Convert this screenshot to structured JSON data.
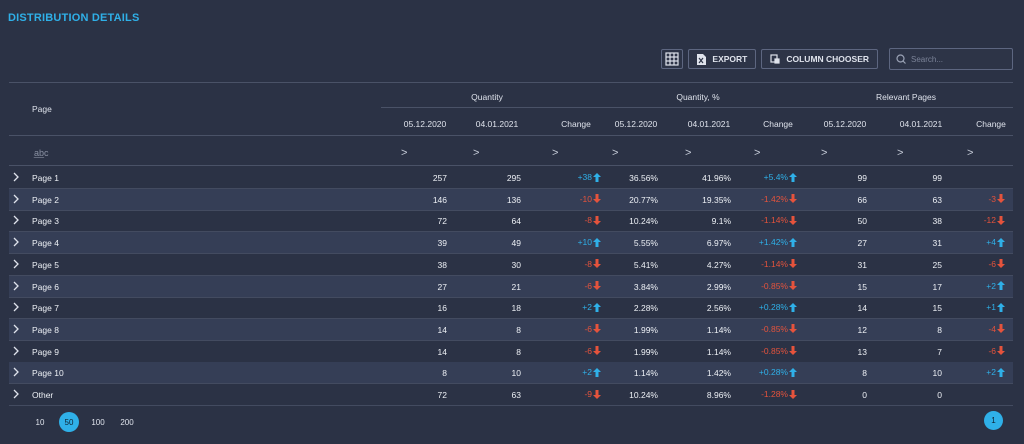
{
  "title": "DISTRIBUTION DETAILS",
  "toolbar": {
    "export_label": "EXPORT",
    "column_chooser_label": "COLUMN CHOOSER",
    "search_placeholder": "Search..."
  },
  "colors": {
    "accent": "#2fb0e8",
    "negative": "#e5533c",
    "background": "#2b3245",
    "row_alt": "#353e56"
  },
  "columns": {
    "page": "Page",
    "groups": [
      "Quantity",
      "Quantity, %",
      "Relevant Pages"
    ],
    "sub": [
      "05.12.2020",
      "04.01.2021",
      "Change",
      "05.12.2020",
      "04.01.2021",
      "Change",
      "05.12.2020",
      "04.01.2021",
      "Change"
    ],
    "filter_placeholder": "a̲b̲c"
  },
  "rows": [
    {
      "page": "Page 1",
      "q1": "257",
      "q2": "295",
      "qc": "+38",
      "qd": "up",
      "p1": "36.56%",
      "p2": "41.96%",
      "pc": "+5.4%",
      "pd": "up",
      "r1": "99",
      "r2": "99",
      "rc": "",
      "rd": ""
    },
    {
      "page": "Page 2",
      "q1": "146",
      "q2": "136",
      "qc": "-10",
      "qd": "down",
      "p1": "20.77%",
      "p2": "19.35%",
      "pc": "-1.42%",
      "pd": "down",
      "r1": "66",
      "r2": "63",
      "rc": "-3",
      "rd": "down"
    },
    {
      "page": "Page 3",
      "q1": "72",
      "q2": "64",
      "qc": "-8",
      "qd": "down",
      "p1": "10.24%",
      "p2": "9.1%",
      "pc": "-1.14%",
      "pd": "down",
      "r1": "50",
      "r2": "38",
      "rc": "-12",
      "rd": "down"
    },
    {
      "page": "Page 4",
      "q1": "39",
      "q2": "49",
      "qc": "+10",
      "qd": "up",
      "p1": "5.55%",
      "p2": "6.97%",
      "pc": "+1.42%",
      "pd": "up",
      "r1": "27",
      "r2": "31",
      "rc": "+4",
      "rd": "up"
    },
    {
      "page": "Page 5",
      "q1": "38",
      "q2": "30",
      "qc": "-8",
      "qd": "down",
      "p1": "5.41%",
      "p2": "4.27%",
      "pc": "-1.14%",
      "pd": "down",
      "r1": "31",
      "r2": "25",
      "rc": "-6",
      "rd": "down"
    },
    {
      "page": "Page 6",
      "q1": "27",
      "q2": "21",
      "qc": "-6",
      "qd": "down",
      "p1": "3.84%",
      "p2": "2.99%",
      "pc": "-0.85%",
      "pd": "down",
      "r1": "15",
      "r2": "17",
      "rc": "+2",
      "rd": "up"
    },
    {
      "page": "Page 7",
      "q1": "16",
      "q2": "18",
      "qc": "+2",
      "qd": "up",
      "p1": "2.28%",
      "p2": "2.56%",
      "pc": "+0.28%",
      "pd": "up",
      "r1": "14",
      "r2": "15",
      "rc": "+1",
      "rd": "up"
    },
    {
      "page": "Page 8",
      "q1": "14",
      "q2": "8",
      "qc": "-6",
      "qd": "down",
      "p1": "1.99%",
      "p2": "1.14%",
      "pc": "-0.85%",
      "pd": "down",
      "r1": "12",
      "r2": "8",
      "rc": "-4",
      "rd": "down"
    },
    {
      "page": "Page 9",
      "q1": "14",
      "q2": "8",
      "qc": "-6",
      "qd": "down",
      "p1": "1.99%",
      "p2": "1.14%",
      "pc": "-0.85%",
      "pd": "down",
      "r1": "13",
      "r2": "7",
      "rc": "-6",
      "rd": "down"
    },
    {
      "page": "Page 10",
      "q1": "8",
      "q2": "10",
      "qc": "+2",
      "qd": "up",
      "p1": "1.14%",
      "p2": "1.42%",
      "pc": "+0.28%",
      "pd": "up",
      "r1": "8",
      "r2": "10",
      "rc": "+2",
      "rd": "up"
    },
    {
      "page": "Other",
      "q1": "72",
      "q2": "63",
      "qc": "-9",
      "qd": "down",
      "p1": "10.24%",
      "p2": "8.96%",
      "pc": "-1.28%",
      "pd": "down",
      "r1": "0",
      "r2": "0",
      "rc": "",
      "rd": ""
    }
  ],
  "pager": {
    "sizes": [
      "10",
      "50",
      "100",
      "200"
    ],
    "active_size": "50",
    "current_page": "1"
  }
}
